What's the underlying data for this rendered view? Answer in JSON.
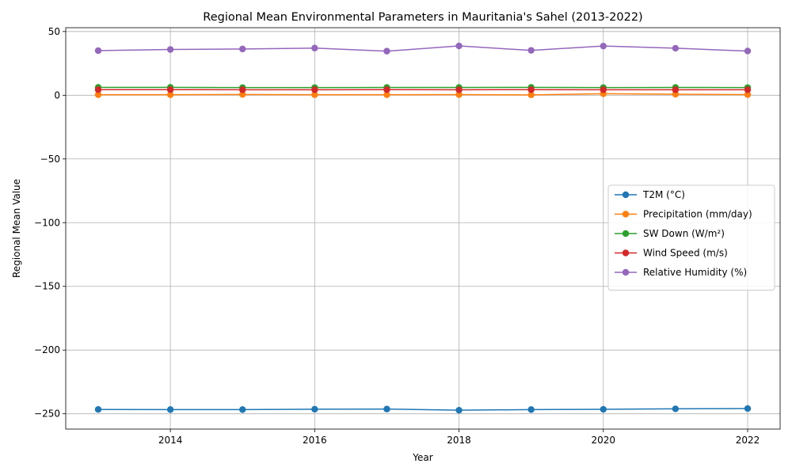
{
  "chart_data": {
    "type": "line",
    "title": "Regional Mean Environmental Parameters in Mauritania's Sahel (2013-2022)",
    "xlabel": "Year",
    "ylabel": "Regional Mean Value",
    "x": [
      2013,
      2014,
      2015,
      2016,
      2017,
      2018,
      2019,
      2020,
      2021,
      2022
    ],
    "xlim": [
      2012.55,
      2022.45
    ],
    "ylim": [
      -262,
      53
    ],
    "xticks": [
      2014,
      2016,
      2018,
      2020,
      2022
    ],
    "yticks": [
      -250,
      -200,
      -150,
      -100,
      -50,
      0,
      50
    ],
    "grid": true,
    "legend_position": "center-right",
    "series": [
      {
        "name": "T2M (°C)",
        "color": "#1f77b4",
        "values": [
          -246.6,
          -246.7,
          -246.7,
          -246.4,
          -246.3,
          -247.2,
          -246.7,
          -246.5,
          -246.1,
          -245.9
        ]
      },
      {
        "name": "Precipitation (mm/day)",
        "color": "#ff7f0e",
        "values": [
          0.4,
          0.4,
          0.6,
          0.4,
          0.4,
          0.5,
          0.3,
          1.2,
          0.8,
          0.5
        ]
      },
      {
        "name": "SW Down (W/m²)",
        "color": "#2ca02c",
        "values": [
          6.2,
          6.2,
          6.0,
          6.0,
          6.1,
          6.1,
          6.2,
          6.0,
          6.1,
          6.0
        ]
      },
      {
        "name": "Wind Speed (m/s)",
        "color": "#d62728",
        "values": [
          4.4,
          4.4,
          4.3,
          4.3,
          4.4,
          4.3,
          4.4,
          4.3,
          4.3,
          4.3
        ]
      },
      {
        "name": "Relative Humidity (%)",
        "color": "#9467bd",
        "values": [
          35.0,
          35.9,
          36.3,
          37.0,
          34.6,
          38.7,
          35.2,
          38.6,
          36.9,
          34.7
        ]
      }
    ]
  }
}
